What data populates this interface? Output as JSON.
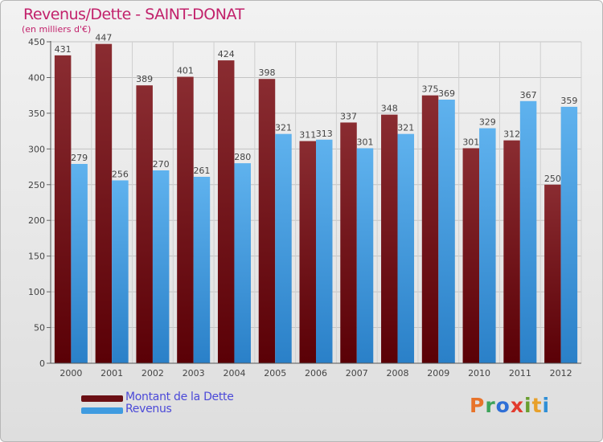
{
  "header": {
    "title": "Revenus/Dette - SAINT-DONAT",
    "subtitle": "(en milliers d'€)"
  },
  "legend": {
    "items": [
      {
        "label": "Montant de la Dette",
        "color": "#6b0f14"
      },
      {
        "label": "Revenus",
        "color": "#3f9be0"
      }
    ]
  },
  "logo": {
    "letters": [
      "P",
      "r",
      "o",
      "x",
      "i",
      "t",
      "i"
    ],
    "colors": [
      "#e8732a",
      "#3da35a",
      "#2f6fd6",
      "#e23b2e",
      "#6a9e2f",
      "#e8a02a",
      "#2f8fd6"
    ]
  },
  "chart_data": {
    "type": "bar",
    "categories": [
      "2000",
      "2001",
      "2002",
      "2003",
      "2004",
      "2005",
      "2006",
      "2007",
      "2008",
      "2009",
      "2010",
      "2011",
      "2012"
    ],
    "series": [
      {
        "name": "Montant de la Dette",
        "values": [
          431,
          447,
          389,
          401,
          424,
          398,
          311,
          337,
          348,
          375,
          301,
          312,
          250
        ],
        "color": "#6b0f14"
      },
      {
        "name": "Revenus",
        "values": [
          279,
          256,
          270,
          261,
          280,
          321,
          313,
          301,
          321,
          369,
          329,
          367,
          359
        ],
        "color": "#3f9be0"
      }
    ],
    "ylim": [
      0,
      450
    ],
    "yticks": [
      0,
      50,
      100,
      150,
      200,
      250,
      300,
      350,
      400,
      450
    ],
    "grid": true,
    "legend_position": "bottom-left"
  }
}
